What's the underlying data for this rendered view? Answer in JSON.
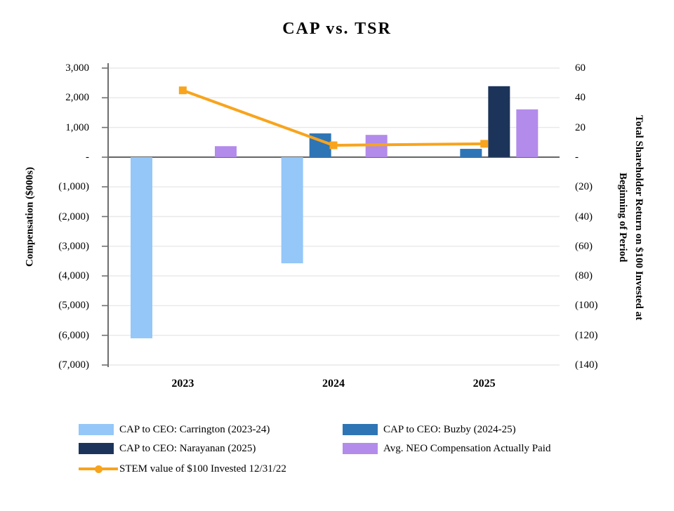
{
  "chart_data": {
    "type": "combo-bar-line",
    "title": "CAP vs. TSR",
    "categories": [
      "2023",
      "2024",
      "2025"
    ],
    "bar_series": [
      {
        "name": "CAP to CEO: Carrington (2023-24)",
        "color": "#95C7F8",
        "values": [
          -6100,
          -3575,
          null
        ]
      },
      {
        "name": "CAP to CEO: Buzby (2024-25)",
        "color": "#2E75B6",
        "values": [
          null,
          800,
          280
        ]
      },
      {
        "name": "CAP to CEO: Narayanan (2025)",
        "color": "#1C3459",
        "values": [
          null,
          null,
          2390
        ]
      },
      {
        "name": "Avg. NEO Compensation Actually Paid",
        "color": "#B38BEB",
        "values": [
          370,
          750,
          1610
        ]
      }
    ],
    "line_series": {
      "name": "STEM value of $100 Invested 12/31/22",
      "color": "#F8A41D",
      "axis": "right",
      "values": [
        45,
        8,
        9
      ]
    },
    "left_axis": {
      "title": "Compensation ($000s)",
      "max": 3000,
      "min": -7000,
      "step": 1000,
      "tick_labels": [
        "3,000",
        "2,000",
        "1,000",
        "-",
        "(1,000)",
        "(2,000)",
        "(3,000)",
        "(4,000)",
        "(5,000)",
        "(6,000)",
        "(7,000)"
      ]
    },
    "right_axis": {
      "title_lines": [
        "Total Shareholder Return  on $100 Invested at",
        "Beginning of Period"
      ],
      "max": 60,
      "min": -140,
      "step": 20,
      "tick_labels": [
        "60",
        "40",
        "20",
        "-",
        "(20)",
        "(40)",
        "(60)",
        "(80)",
        "(100)",
        "(120)",
        "(140)"
      ]
    },
    "legend": [
      {
        "label": "CAP to CEO: Carrington (2023-24)",
        "color": "#95C7F8",
        "marker": "swatch"
      },
      {
        "label": "CAP to CEO: Buzby (2024-25)",
        "color": "#2E75B6",
        "marker": "swatch"
      },
      {
        "label": "CAP to CEO: Narayanan (2025)",
        "color": "#1C3459",
        "marker": "swatch"
      },
      {
        "label": "Avg. NEO Compensation Actually Paid",
        "color": "#B38BEB",
        "marker": "swatch"
      },
      {
        "label": "STEM value of $100 Invested 12/31/22",
        "color": "#F8A41D",
        "marker": "line"
      }
    ],
    "colors": {
      "gridline": "#E8E8E8",
      "axis": "#6F6F6F",
      "zero_line": "#6F6F6F",
      "text": "#000000"
    }
  }
}
